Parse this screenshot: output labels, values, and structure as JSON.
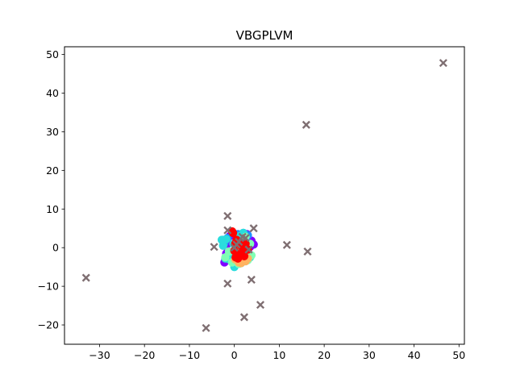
{
  "chart_data": {
    "type": "scatter",
    "title": "VBGPLVM",
    "xlabel": "",
    "ylabel": "",
    "xlim": [
      -37.8,
      51.2
    ],
    "ylim": [
      -25.0,
      52.0
    ],
    "xticks": [
      -30,
      -20,
      -10,
      0,
      10,
      20,
      30,
      40,
      50
    ],
    "yticks": [
      -20,
      -10,
      0,
      10,
      20,
      30,
      40,
      50
    ],
    "xtick_labels": [
      "−30",
      "−20",
      "−10",
      "0",
      "10",
      "20",
      "30",
      "40",
      "50"
    ],
    "ytick_labels": [
      "−20",
      "−10",
      "0",
      "10",
      "20",
      "30",
      "40",
      "50"
    ],
    "grid": false,
    "series": [
      {
        "marker": "circle",
        "color": "#8000ff",
        "x": [
          -2.2,
          -1.5,
          3.8,
          4.3,
          3.2,
          -1.8,
          0.5,
          2.8,
          -2.0,
          1.2,
          4.0,
          -1.0,
          3.5,
          0.0,
          2.2
        ],
        "y": [
          -3.8,
          1.0,
          1.8,
          0.8,
          -1.5,
          -1.5,
          2.8,
          3.5,
          -3.0,
          -2.2,
          1.2,
          3.0,
          0.2,
          -3.5,
          2.0
        ]
      },
      {
        "marker": "circle",
        "color": "#1e90ff",
        "x": [
          -1.5,
          -2.5,
          2.0,
          3.0,
          -1.0,
          0.8,
          2.5,
          -2.2,
          1.8,
          0.0
        ],
        "y": [
          2.5,
          2.0,
          3.8,
          3.2,
          -3.0,
          3.5,
          -1.0,
          1.2,
          0.0,
          -2.5
        ]
      },
      {
        "marker": "circle",
        "color": "#2adddd",
        "x": [
          -2.8,
          -1.8,
          -2.0,
          -1.2,
          0.0,
          -0.5,
          1.5,
          2.5,
          3.0,
          1.2,
          -0.2,
          3.5,
          2.0,
          -2.5,
          0.5
        ],
        "y": [
          2.0,
          2.2,
          -2.8,
          -3.0,
          -5.0,
          -1.5,
          -4.0,
          -3.5,
          -1.5,
          3.0,
          1.0,
          -2.5,
          3.8,
          0.5,
          -2.0
        ]
      },
      {
        "marker": "circle",
        "color": "#80ffb4",
        "x": [
          3.8,
          3.0,
          -1.2,
          0.8,
          2.5,
          -2.0,
          1.0,
          3.5,
          -0.5,
          2.0
        ],
        "y": [
          -2.0,
          -3.2,
          -1.0,
          0.5,
          2.8,
          -2.5,
          -4.2,
          1.0,
          -3.8,
          -1.5
        ]
      },
      {
        "marker": "circle",
        "color": "#ffb360",
        "x": [
          1.8,
          1.0,
          2.5,
          3.0,
          0.2,
          1.5
        ],
        "y": [
          -3.2,
          -3.8,
          -3.5,
          -2.8,
          -3.0,
          -4.0
        ]
      },
      {
        "marker": "circle",
        "color": "#ff0000",
        "x": [
          -0.5,
          -0.3,
          0.2,
          0.5,
          1.2,
          0.8,
          2.0,
          2.5,
          3.0,
          1.5,
          0.5,
          1.0,
          0.0,
          2.2,
          1.8,
          0.3
        ],
        "y": [
          4.2,
          3.8,
          1.0,
          -1.5,
          -2.0,
          -2.8,
          -1.0,
          1.0,
          -0.5,
          0.5,
          2.0,
          1.5,
          -0.8,
          -2.2,
          0.0,
          -2.5
        ]
      },
      {
        "marker": "x",
        "color": "#7f6f72",
        "x": [
          46.5,
          16.0,
          -33.0,
          -6.3,
          2.2,
          5.8,
          3.8,
          -1.5,
          4.3,
          -1.5,
          -4.5,
          11.7,
          16.3,
          0.5,
          2.5,
          -1.5,
          1.0,
          1.8,
          3.2,
          0.0
        ],
        "y": [
          47.8,
          31.8,
          -7.8,
          -20.8,
          -18.0,
          -14.8,
          -8.3,
          -9.3,
          5.0,
          8.2,
          0.2,
          0.7,
          -1.0,
          0.8,
          2.5,
          4.5,
          1.5,
          2.8,
          -0.5,
          0.0
        ]
      }
    ]
  }
}
